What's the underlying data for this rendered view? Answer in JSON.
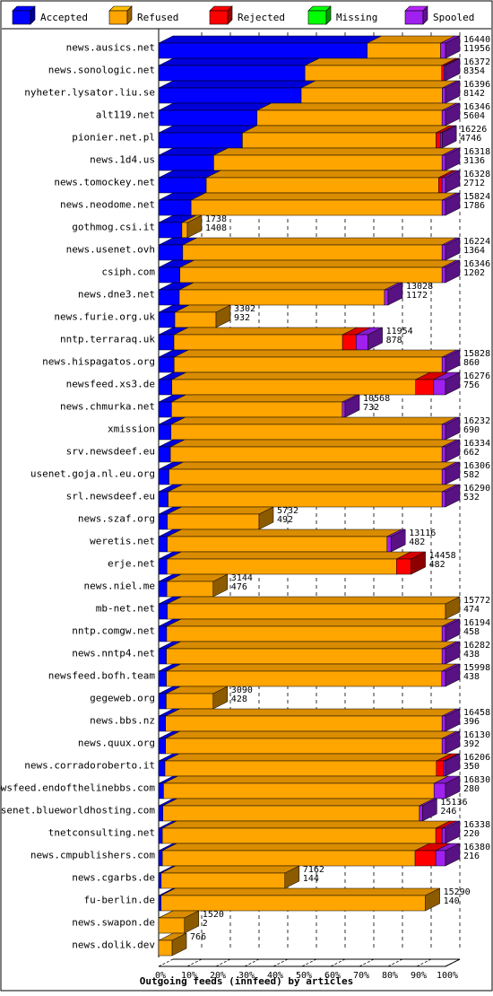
{
  "chart_data": {
    "type": "bar",
    "orientation": "horizontal",
    "stacked": true,
    "style": "3d",
    "xlabel": "Outgoing feeds (innfeed) by articles",
    "x_ticks": [
      "0%",
      "10%",
      "20%",
      "30%",
      "40%",
      "50%",
      "60%",
      "70%",
      "80%",
      "90%",
      "100%"
    ],
    "xlim": [
      0,
      100
    ],
    "grid": true,
    "legend": {
      "placement": "top",
      "entries": [
        {
          "name": "Accepted",
          "color": "#0000ff"
        },
        {
          "name": "Refused",
          "color": "#ffa500"
        },
        {
          "name": "Rejected",
          "color": "#ff0000"
        },
        {
          "name": "Missing",
          "color": "#00ff00"
        },
        {
          "name": "Spooled",
          "color": "#a020f0"
        }
      ]
    },
    "bars": [
      {
        "name": "news.ausics.net",
        "offered": "16440",
        "accepted": "11956",
        "segments": [
          72.7,
          25.6,
          0,
          0,
          1.7
        ]
      },
      {
        "name": "news.sonologic.net",
        "offered": "16372",
        "accepted": "8354",
        "segments": [
          51.0,
          47.7,
          0.8,
          0,
          0.5
        ]
      },
      {
        "name": "nyheter.lysator.liu.se",
        "offered": "16396",
        "accepted": "8142",
        "segments": [
          49.7,
          49.2,
          0,
          0,
          1.1
        ]
      },
      {
        "name": "alt119.net",
        "offered": "16346",
        "accepted": "5604",
        "segments": [
          34.3,
          64.5,
          0,
          0,
          1.2
        ]
      },
      {
        "name": "pionier.net.pl",
        "offered": "16226",
        "accepted": "4746",
        "segments": [
          29.2,
          67.5,
          1.5,
          0,
          0.6
        ]
      },
      {
        "name": "news.1d4.us",
        "offered": "16318",
        "accepted": "3136",
        "segments": [
          19.2,
          79.6,
          0,
          0,
          1.2
        ]
      },
      {
        "name": "news.tomockey.net",
        "offered": "16328",
        "accepted": "2712",
        "segments": [
          16.6,
          81.0,
          1.2,
          0,
          1.2
        ]
      },
      {
        "name": "news.neodome.net",
        "offered": "15824",
        "accepted": "1786",
        "segments": [
          11.3,
          87.5,
          0,
          0,
          1.2
        ]
      },
      {
        "name": "gothmog.csi.it",
        "offered": "1738",
        "accepted": "1408",
        "segments": [
          81.0,
          19.0,
          0,
          0,
          0
        ]
      },
      {
        "name": "news.usenet.ovh",
        "offered": "16224",
        "accepted": "1364",
        "segments": [
          8.4,
          90.4,
          0,
          0,
          1.2
        ]
      },
      {
        "name": "csiph.com",
        "offered": "16346",
        "accepted": "1202",
        "segments": [
          7.4,
          91.4,
          0,
          0,
          1.2
        ]
      },
      {
        "name": "news.dne3.net",
        "offered": "13028",
        "accepted": "1172",
        "segments": [
          9.0,
          89.4,
          0,
          0,
          1.6
        ]
      },
      {
        "name": "news.furie.org.uk",
        "offered": "3302",
        "accepted": "932",
        "segments": [
          28.2,
          71.8,
          0,
          0,
          0
        ]
      },
      {
        "name": "nntp.terraraq.uk",
        "offered": "11954",
        "accepted": "878",
        "segments": [
          7.3,
          80.5,
          6.5,
          0,
          5.7
        ]
      },
      {
        "name": "news.hispagatos.org",
        "offered": "15828",
        "accepted": "860",
        "segments": [
          5.4,
          93.4,
          0,
          0,
          1.2
        ]
      },
      {
        "name": "newsfeed.xs3.de",
        "offered": "16276",
        "accepted": "756",
        "segments": [
          4.6,
          85.0,
          6.3,
          0,
          4.1
        ]
      },
      {
        "name": "news.chmurka.net",
        "offered": "10568",
        "accepted": "732",
        "segments": [
          6.9,
          91.6,
          0,
          0,
          1.5
        ]
      },
      {
        "name": "xmission",
        "offered": "16232",
        "accepted": "690",
        "segments": [
          4.3,
          94.5,
          0,
          0,
          1.2
        ]
      },
      {
        "name": "srv.newsdeef.eu",
        "offered": "16334",
        "accepted": "662",
        "segments": [
          4.1,
          94.7,
          0,
          0,
          1.2
        ]
      },
      {
        "name": "usenet.goja.nl.eu.org",
        "offered": "16306",
        "accepted": "582",
        "segments": [
          3.6,
          95.2,
          0,
          0,
          1.2
        ]
      },
      {
        "name": "srl.newsdeef.eu",
        "offered": "16290",
        "accepted": "532",
        "segments": [
          3.3,
          95.5,
          0,
          0,
          1.2
        ]
      },
      {
        "name": "news.szaf.org",
        "offered": "5732",
        "accepted": "492",
        "segments": [
          8.6,
          91.4,
          0,
          0,
          0
        ]
      },
      {
        "name": "weretis.net",
        "offered": "13116",
        "accepted": "482",
        "segments": [
          3.7,
          94.6,
          0,
          0,
          1.7
        ]
      },
      {
        "name": "erje.net",
        "offered": "14458",
        "accepted": "482",
        "segments": [
          3.3,
          90.9,
          5.8,
          0,
          0
        ]
      },
      {
        "name": "news.niel.me",
        "offered": "3144",
        "accepted": "476",
        "segments": [
          15.1,
          84.9,
          0,
          0,
          0
        ]
      },
      {
        "name": "mb-net.net",
        "offered": "15772",
        "accepted": "474",
        "segments": [
          3.0,
          97.0,
          0,
          0,
          0
        ]
      },
      {
        "name": "nntp.comgw.net",
        "offered": "16194",
        "accepted": "458",
        "segments": [
          2.8,
          96.0,
          0,
          0,
          1.2
        ]
      },
      {
        "name": "news.nntp4.net",
        "offered": "16282",
        "accepted": "438",
        "segments": [
          2.7,
          96.1,
          0,
          0,
          1.2
        ]
      },
      {
        "name": "newsfeed.bofh.team",
        "offered": "15998",
        "accepted": "438",
        "segments": [
          2.7,
          96.0,
          0,
          0,
          1.3
        ]
      },
      {
        "name": "gegeweb.org",
        "offered": "3090",
        "accepted": "428",
        "segments": [
          13.9,
          86.1,
          0,
          0,
          0
        ]
      },
      {
        "name": "news.bbs.nz",
        "offered": "16458",
        "accepted": "396",
        "segments": [
          2.4,
          96.4,
          0,
          0,
          1.2
        ]
      },
      {
        "name": "news.quux.org",
        "offered": "16130",
        "accepted": "392",
        "segments": [
          2.4,
          96.4,
          0,
          0,
          1.2
        ]
      },
      {
        "name": "news.corradoroberto.it",
        "offered": "16206",
        "accepted": "350",
        "segments": [
          2.2,
          94.6,
          2.6,
          0,
          0.6
        ]
      },
      {
        "name": "newsfeed.endofthelinebbs.com",
        "offered": "16830",
        "accepted": "280",
        "segments": [
          1.7,
          94.3,
          0,
          0,
          4.0
        ]
      },
      {
        "name": "usenet.blueworldhosting.com",
        "offered": "15136",
        "accepted": "246",
        "segments": [
          1.6,
          97.2,
          0,
          0,
          1.2
        ]
      },
      {
        "name": "tnetconsulting.net",
        "offered": "16338",
        "accepted": "220",
        "segments": [
          1.3,
          95.3,
          2.2,
          0,
          1.2
        ]
      },
      {
        "name": "news.cmpublishers.com",
        "offered": "16380",
        "accepted": "216",
        "segments": [
          1.3,
          88.1,
          7.2,
          0,
          3.4
        ]
      },
      {
        "name": "news.cgarbs.de",
        "offered": "7162",
        "accepted": "144",
        "segments": [
          2.0,
          98.0,
          0,
          0,
          0
        ]
      },
      {
        "name": "fu-berlin.de",
        "offered": "15290",
        "accepted": "140",
        "segments": [
          0.9,
          99.1,
          0,
          0,
          0
        ]
      },
      {
        "name": "news.swapon.de",
        "offered": "1520",
        "accepted": "2",
        "segments": [
          0.1,
          99.9,
          0,
          0,
          0
        ]
      },
      {
        "name": "news.dolik.dev",
        "offered": "766",
        "accepted": "",
        "segments": [
          0,
          100,
          0,
          0,
          0
        ]
      }
    ],
    "bar_widths_pct": [
      100,
      100,
      100,
      100,
      100,
      100,
      100,
      100,
      10,
      100,
      100,
      80,
      20,
      73,
      100,
      100,
      65,
      100,
      100,
      100,
      100,
      35,
      81,
      88,
      19,
      100,
      100,
      100,
      100,
      19,
      100,
      100,
      100,
      100,
      92,
      100,
      100,
      44,
      93,
      9,
      4.7
    ]
  }
}
